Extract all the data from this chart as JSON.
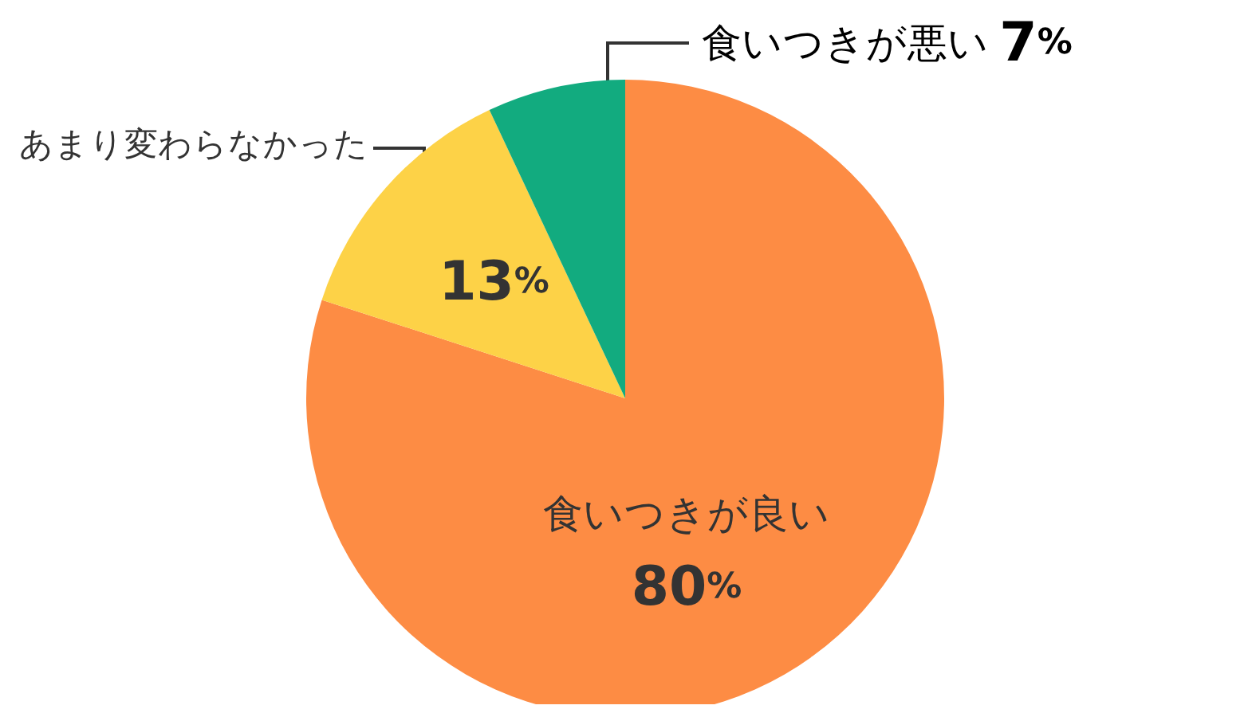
{
  "chart_data": {
    "type": "pie",
    "categories": [
      "食いつきが良い",
      "あまり変わらなかった",
      "食いつきが悪い"
    ],
    "values": [
      80,
      13,
      7
    ],
    "value_labels": [
      "80%",
      "13%",
      "7%"
    ],
    "colors": [
      "#fd8c44",
      "#fdd247",
      "#12ab7f"
    ]
  }
}
